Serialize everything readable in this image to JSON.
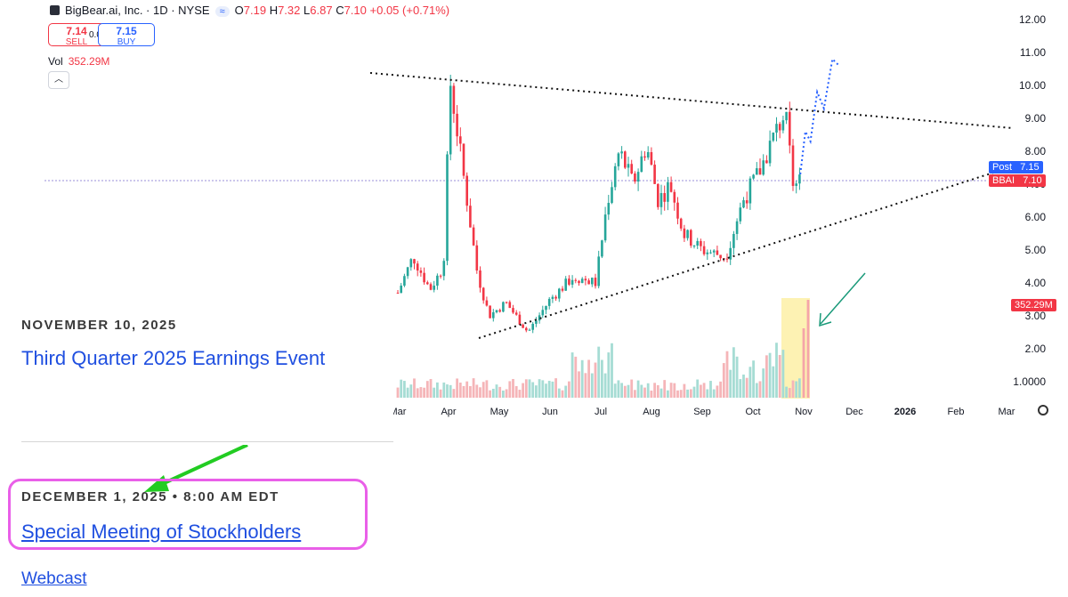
{
  "header": {
    "title": "BigBear.ai, Inc. · 1D · NYSE",
    "mode_label": "≈",
    "o_label": "O",
    "o_val": "7.19",
    "h_label": "H",
    "h_val": "7.32",
    "l_label": "L",
    "l_val": "6.87",
    "c_label": "C",
    "c_val": "7.10",
    "change": "+0.05 (+0.71%)"
  },
  "trade": {
    "sell_price": "7.14",
    "sell_label": "SELL",
    "spread": "0.01",
    "buy_price": "7.15",
    "buy_label": "BUY"
  },
  "volume_legend": {
    "label": "Vol",
    "value": "352.29M"
  },
  "price_tags": {
    "post_label": "Post",
    "post_value": "7.15",
    "ticker_label": "BBAI",
    "ticker_value": "7.10",
    "volume_tag": "352.29M"
  },
  "colors": {
    "up": "#26a69a",
    "down": "#f23645",
    "post": "#2962ff",
    "highlight": "#fdf2b3",
    "frame": "#e95fe8",
    "arrow_green": "#22cc22",
    "arrow_teal": "#1a9a7a"
  },
  "events": {
    "event1_date": "NOVEMBER 10, 2025",
    "event1_title": "Third Quarter 2025 Earnings Event",
    "event2_date": "DECEMBER 1, 2025 • 8:00 AM EDT",
    "event2_title": "Special Meeting of Stockholders",
    "event2_link": "Webcast"
  },
  "chart_data": {
    "type": "candlestick",
    "title": "",
    "y_ticks": [
      "12.00",
      "11.00",
      "10.00",
      "9.00",
      "8.00",
      "7.00",
      "6.00",
      "5.00",
      "4.00",
      "3.00",
      "2.00",
      "1.0000"
    ],
    "ylim": [
      1,
      12
    ],
    "x_ticks": [
      "Mar",
      "Apr",
      "May",
      "Jun",
      "Jul",
      "Aug",
      "Sep",
      "Oct",
      "Nov",
      "Dec",
      "2026",
      "Feb",
      "Mar"
    ],
    "price_keypoints": [
      {
        "x": "Mar 01",
        "y": 3.7
      },
      {
        "x": "Mar 10",
        "y": 4.8
      },
      {
        "x": "Mar 20",
        "y": 3.8
      },
      {
        "x": "Mar 28",
        "y": 4.5
      },
      {
        "x": "Apr 02",
        "y": 10.1
      },
      {
        "x": "Apr 10",
        "y": 7.2
      },
      {
        "x": "Apr 18",
        "y": 4.3
      },
      {
        "x": "Apr 25",
        "y": 3.0
      },
      {
        "x": "May 05",
        "y": 3.4
      },
      {
        "x": "May 18",
        "y": 2.5
      },
      {
        "x": "Jun 01",
        "y": 3.5
      },
      {
        "x": "Jun 15",
        "y": 4.2
      },
      {
        "x": "Jun 28",
        "y": 4.0
      },
      {
        "x": "Jul 05",
        "y": 6.5
      },
      {
        "x": "Jul 12",
        "y": 8.0
      },
      {
        "x": "Jul 20",
        "y": 7.0
      },
      {
        "x": "Jul 28",
        "y": 8.2
      },
      {
        "x": "Aug 05",
        "y": 6.5
      },
      {
        "x": "Aug 12",
        "y": 7.0
      },
      {
        "x": "Aug 20",
        "y": 5.5
      },
      {
        "x": "Sep 01",
        "y": 5.0
      },
      {
        "x": "Sep 15",
        "y": 4.8
      },
      {
        "x": "Sep 25",
        "y": 6.5
      },
      {
        "x": "Oct 05",
        "y": 7.4
      },
      {
        "x": "Oct 12",
        "y": 8.3
      },
      {
        "x": "Oct 20",
        "y": 9.2
      },
      {
        "x": "Oct 25",
        "y": 6.9
      },
      {
        "x": "Oct 29",
        "y": 7.1
      }
    ],
    "last_price": 7.1,
    "post_price": 7.15,
    "trendlines": [
      {
        "name": "upper",
        "points": [
          {
            "x": "Apr 02",
            "y": 10.4
          },
          {
            "x": "Mar 2026",
            "y": 8.7
          }
        ]
      },
      {
        "name": "lower",
        "points": [
          {
            "x": "May 18",
            "y": 2.3
          },
          {
            "x": "Mar 2026",
            "y": 7.3
          }
        ]
      }
    ],
    "projection": [
      {
        "x": "Oct 29",
        "y": 7.3
      },
      {
        "x": "Nov 02",
        "y": 8.6
      },
      {
        "x": "Nov 05",
        "y": 8.3
      },
      {
        "x": "Nov 09",
        "y": 9.8
      },
      {
        "x": "Nov 13",
        "y": 9.3
      },
      {
        "x": "Nov 18",
        "y": 10.8
      },
      {
        "x": "Nov 22",
        "y": 10.6
      }
    ],
    "volume": {
      "last": "352.29M",
      "highlight_range": [
        "Oct 23",
        "Oct 29"
      ]
    },
    "grid": false,
    "legend": "top-left"
  }
}
